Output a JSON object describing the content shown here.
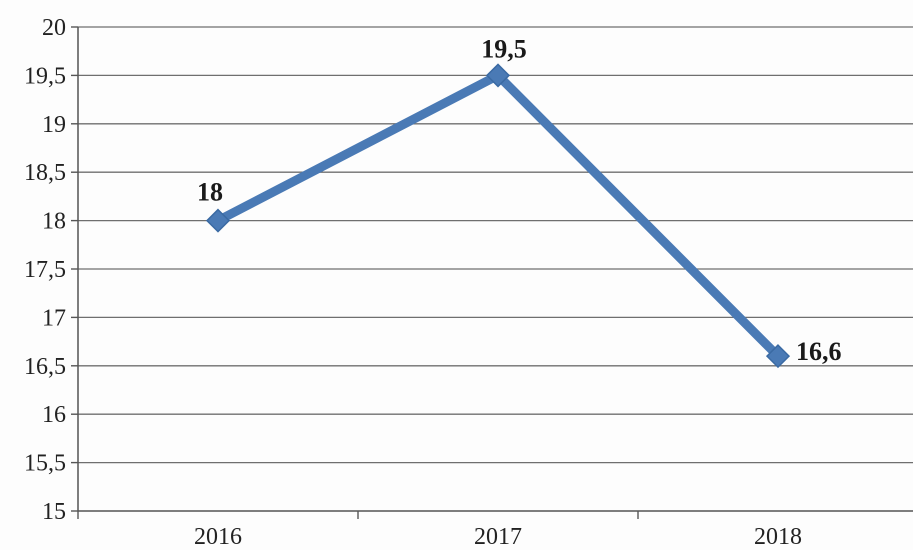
{
  "chart_data": {
    "type": "line",
    "title": "",
    "xlabel": "",
    "ylabel": "",
    "categories": [
      "2016",
      "2017",
      "2018"
    ],
    "series": [
      {
        "values": [
          18,
          19.5,
          16.6
        ],
        "data_labels": [
          "18",
          "19,5",
          "16,6"
        ],
        "color": "#4a7ab5",
        "marker": "diamond"
      }
    ],
    "ylim": [
      15,
      20
    ],
    "y_ticks": [
      15,
      15.5,
      16,
      16.5,
      17,
      17.5,
      18,
      18.5,
      19,
      19.5,
      20
    ],
    "y_tick_labels": [
      "15",
      "15,5",
      "16",
      "16,5",
      "17",
      "17,5",
      "18",
      "18,5",
      "19",
      "19,5",
      "20"
    ],
    "grid": true,
    "legend": "none"
  }
}
